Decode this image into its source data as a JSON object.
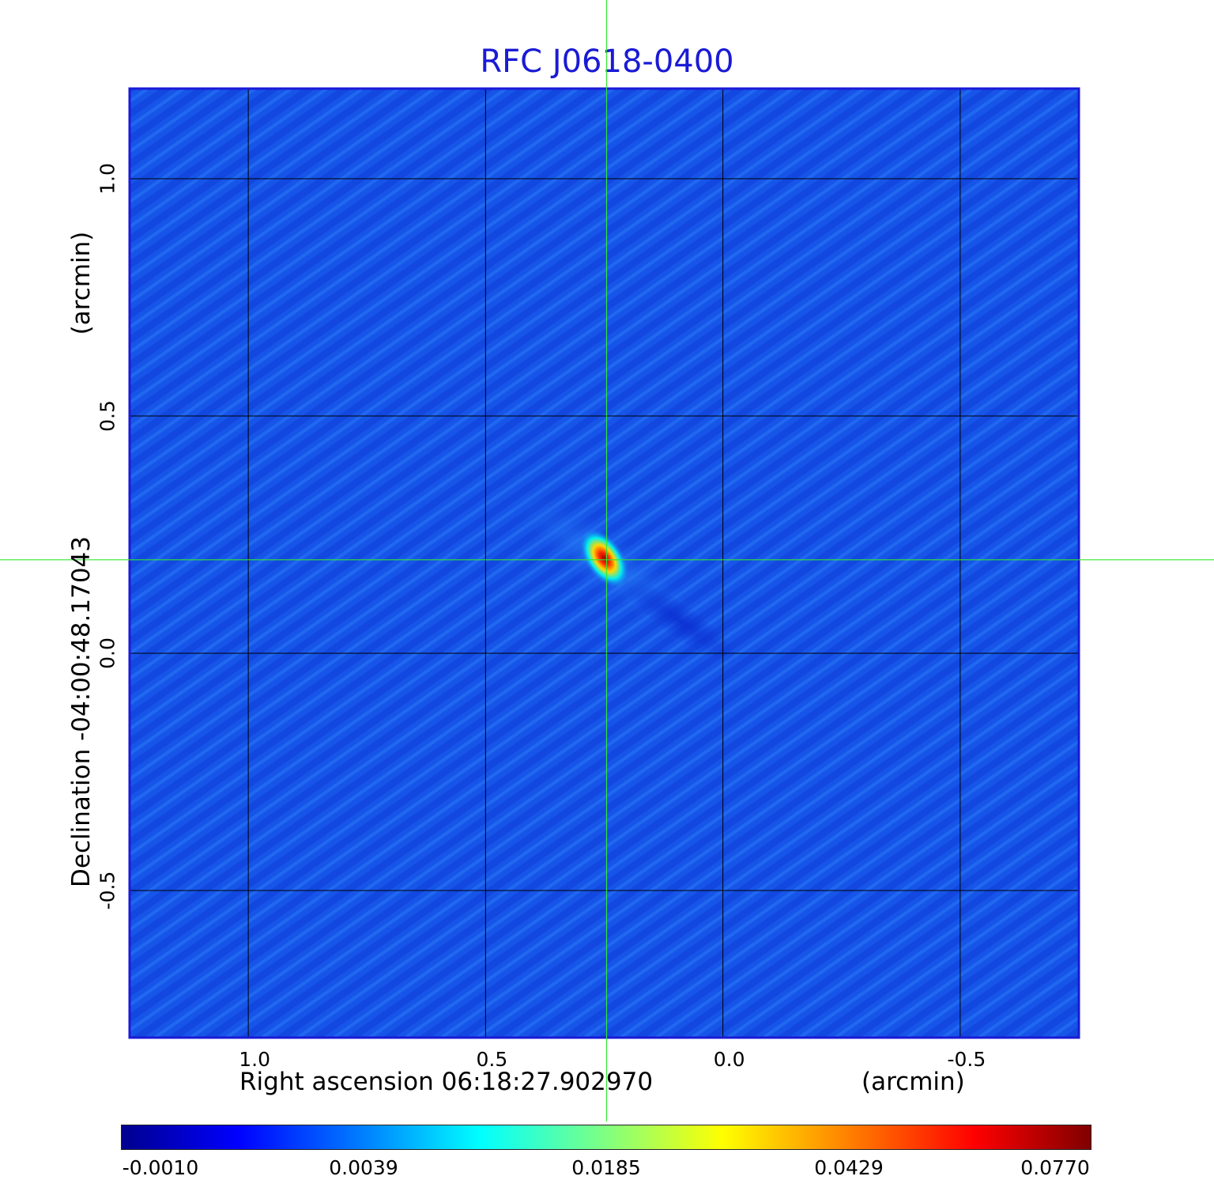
{
  "chart_data": {
    "type": "heatmap",
    "title": "RFC J0618-0400",
    "xlabel": "Right ascension  06:18:27.902970",
    "xlabel_unit": "(arcmin)",
    "ylabel": "Declination  -04:00:48.17043",
    "ylabel_unit": "(arcmin)",
    "x_ticks": [
      "1.0",
      "0.5",
      "0.0",
      "-0.5"
    ],
    "x_tick_values": [
      1.0,
      0.5,
      0.0,
      -0.5
    ],
    "y_ticks": [
      "1.0",
      "0.5",
      "0.0",
      "-0.5"
    ],
    "y_tick_values": [
      1.0,
      0.5,
      0.0,
      -0.5
    ],
    "xlim": [
      1.25,
      -0.75
    ],
    "ylim": [
      -0.81,
      1.19
    ],
    "grid": true,
    "crosshair": {
      "x": 0.245,
      "y": 0.197
    },
    "peak": {
      "x": 0.25,
      "y": 0.2,
      "value": 0.077
    },
    "colorbar": {
      "colormap": "jet",
      "ticks": [
        "-0.0010",
        "0.0039",
        "0.0185",
        "0.0429",
        "0.0770"
      ],
      "tick_values": [
        -0.001,
        0.0039,
        0.0185,
        0.0429,
        0.077
      ],
      "placement": "bottom"
    }
  },
  "colors": {
    "title": "#1a1ad6",
    "crosshair": "#33e633",
    "grid": "#000000",
    "frame": "#1a1ad6"
  }
}
